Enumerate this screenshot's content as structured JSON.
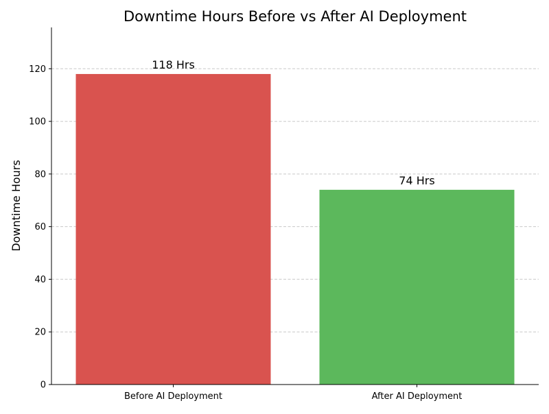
{
  "chart_data": {
    "type": "bar",
    "title": "Downtime Hours Before vs After AI Deployment",
    "xlabel": "",
    "ylabel": "Downtime Hours",
    "categories": [
      "Before AI Deployment",
      "After AI Deployment"
    ],
    "values": [
      118,
      74
    ],
    "data_labels": [
      "118 Hrs",
      "74 Hrs"
    ],
    "colors": [
      "#d9534f",
      "#5cb85c"
    ],
    "ylim": [
      0,
      135.7
    ],
    "yticks": [
      0,
      20,
      40,
      60,
      80,
      100,
      120
    ],
    "grid": {
      "y": true,
      "x": false,
      "style": "dashed",
      "color": "#c8c8c8"
    }
  }
}
